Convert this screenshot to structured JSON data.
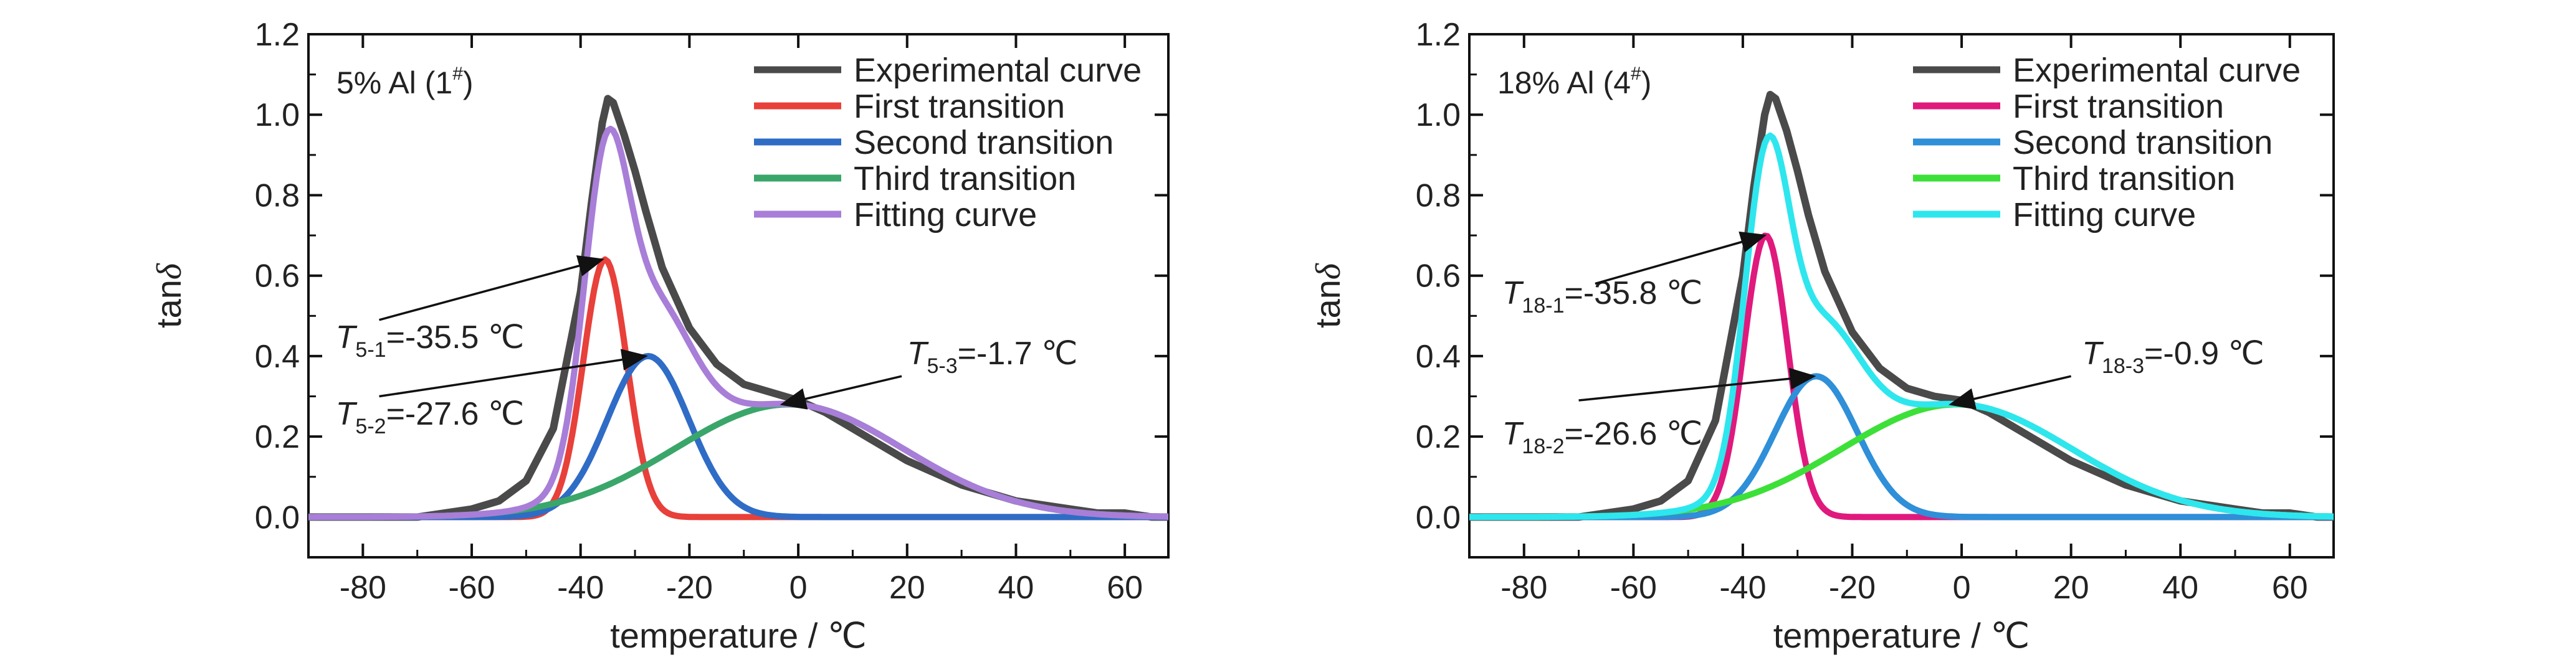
{
  "chart_data": [
    {
      "type": "line",
      "panel_label": "5% Al (1",
      "panel_label_sup": "#",
      "panel_label_end": ")",
      "xlabel": "temperature / ℃",
      "ylabel": "tan",
      "ylabel_symbol": "δ",
      "xlim": [
        -90,
        68
      ],
      "ylim": [
        -0.1,
        1.2
      ],
      "x_ticks": [
        -80,
        -60,
        -40,
        -20,
        0,
        20,
        40,
        60
      ],
      "y_ticks": [
        0.0,
        0.2,
        0.4,
        0.6,
        0.8,
        1.0,
        1.2
      ],
      "x_tick_labels": [
        "-80",
        "-60",
        "-40",
        "-20",
        "0",
        "20",
        "40",
        "60"
      ],
      "y_tick_labels": [
        "0.0",
        "0.2",
        "0.4",
        "0.6",
        "0.8",
        "1.0",
        "1.2"
      ],
      "legend_position": "top-right",
      "series": [
        {
          "name": "Experimental curve",
          "color": "#4a4a4a",
          "role": "experimental",
          "x": [
            -90,
            -80,
            -70,
            -60,
            -55,
            -50,
            -45,
            -40,
            -38,
            -36,
            -35,
            -34,
            -32,
            -30,
            -28,
            -25,
            -20,
            -15,
            -10,
            -5,
            0,
            5,
            10,
            15,
            20,
            25,
            30,
            35,
            40,
            45,
            50,
            55,
            60,
            65,
            68
          ],
          "y": [
            0.0,
            0.0,
            0.0,
            0.02,
            0.04,
            0.09,
            0.22,
            0.56,
            0.78,
            0.98,
            1.04,
            1.03,
            0.95,
            0.86,
            0.76,
            0.62,
            0.47,
            0.38,
            0.33,
            0.31,
            0.29,
            0.26,
            0.22,
            0.18,
            0.14,
            0.11,
            0.08,
            0.06,
            0.04,
            0.03,
            0.02,
            0.01,
            0.01,
            0.0,
            0.0
          ]
        },
        {
          "name": "First transition",
          "color": "#e8403a",
          "role": "gauss",
          "center": -35.5,
          "height": 0.64,
          "sigma": 4.0
        },
        {
          "name": "Second transition",
          "color": "#2f6cc6",
          "role": "gauss",
          "center": -27.6,
          "height": 0.4,
          "sigma": 7.5
        },
        {
          "name": "Third transition",
          "color": "#3aa66a",
          "role": "gauss",
          "center": -1.7,
          "height": 0.28,
          "sigma": 21.0
        },
        {
          "name": "Fitting curve",
          "color": "#a87ed8",
          "role": "sum"
        }
      ],
      "annotations": [
        {
          "symbol": "T",
          "sub": "5-1",
          "text": "=-35.5 ℃",
          "x": -85,
          "y": 0.42,
          "arrow_to": [
            -36,
            0.64
          ],
          "arrow_from": [
            -77,
            0.49
          ]
        },
        {
          "symbol": "T",
          "sub": "5-2",
          "text": "=-27.6 ℃",
          "x": -85,
          "y": 0.23,
          "arrow_to": [
            -28,
            0.4
          ],
          "arrow_from": [
            -77,
            0.3
          ]
        },
        {
          "symbol": "T",
          "sub": "5-3",
          "text": "=-1.7 ℃",
          "x": 20,
          "y": 0.38,
          "arrow_to": [
            -3,
            0.28
          ],
          "arrow_from": [
            19,
            0.35
          ]
        }
      ]
    },
    {
      "type": "line",
      "panel_label": "18% Al (4",
      "panel_label_sup": "#",
      "panel_label_end": ")",
      "xlabel": "temperature / ℃",
      "ylabel": "tan",
      "ylabel_symbol": "δ",
      "xlim": [
        -90,
        68
      ],
      "ylim": [
        -0.1,
        1.2
      ],
      "x_ticks": [
        -80,
        -60,
        -40,
        -20,
        0,
        20,
        40,
        60
      ],
      "y_ticks": [
        0.0,
        0.2,
        0.4,
        0.6,
        0.8,
        1.0,
        1.2
      ],
      "x_tick_labels": [
        "-80",
        "-60",
        "-40",
        "-20",
        "0",
        "20",
        "40",
        "60"
      ],
      "y_tick_labels": [
        "0.0",
        "0.2",
        "0.4",
        "0.6",
        "0.8",
        "1.0",
        "1.2"
      ],
      "legend_position": "top-right",
      "series": [
        {
          "name": "Experimental curve",
          "color": "#4a4a4a",
          "role": "experimental",
          "x": [
            -90,
            -80,
            -70,
            -60,
            -55,
            -50,
            -45,
            -40,
            -38,
            -36,
            -35,
            -34,
            -32,
            -30,
            -28,
            -25,
            -20,
            -15,
            -10,
            -5,
            0,
            5,
            10,
            15,
            20,
            25,
            30,
            35,
            40,
            45,
            50,
            55,
            60,
            65,
            68
          ],
          "y": [
            0.0,
            0.0,
            0.0,
            0.02,
            0.04,
            0.09,
            0.24,
            0.6,
            0.82,
            1.0,
            1.05,
            1.04,
            0.96,
            0.86,
            0.75,
            0.61,
            0.46,
            0.37,
            0.32,
            0.3,
            0.29,
            0.26,
            0.22,
            0.18,
            0.14,
            0.11,
            0.08,
            0.06,
            0.04,
            0.03,
            0.02,
            0.01,
            0.01,
            0.0,
            0.0
          ]
        },
        {
          "name": "First transition",
          "color": "#e0197d",
          "role": "gauss",
          "center": -35.8,
          "height": 0.7,
          "sigma": 4.0
        },
        {
          "name": "Second transition",
          "color": "#2f8fd8",
          "role": "gauss",
          "center": -26.6,
          "height": 0.35,
          "sigma": 7.5
        },
        {
          "name": "Third transition",
          "color": "#3de038",
          "role": "gauss",
          "center": -0.9,
          "height": 0.28,
          "sigma": 21.0
        },
        {
          "name": "Fitting curve",
          "color": "#2ee6ee",
          "role": "sum"
        }
      ],
      "annotations": [
        {
          "symbol": "T",
          "sub": "18-1",
          "text": "=-35.8 ℃",
          "x": -84,
          "y": 0.53,
          "arrow_to": [
            -36,
            0.7
          ],
          "arrow_from": [
            -67,
            0.58
          ]
        },
        {
          "symbol": "T",
          "sub": "18-2",
          "text": "=-26.6 ℃",
          "x": -84,
          "y": 0.18,
          "arrow_to": [
            -27,
            0.35
          ],
          "arrow_from": [
            -70,
            0.29
          ]
        },
        {
          "symbol": "T",
          "sub": "18-3",
          "text": "=-0.9 ℃",
          "x": 22,
          "y": 0.38,
          "arrow_to": [
            -2,
            0.28
          ],
          "arrow_from": [
            20,
            0.35
          ]
        }
      ]
    }
  ]
}
